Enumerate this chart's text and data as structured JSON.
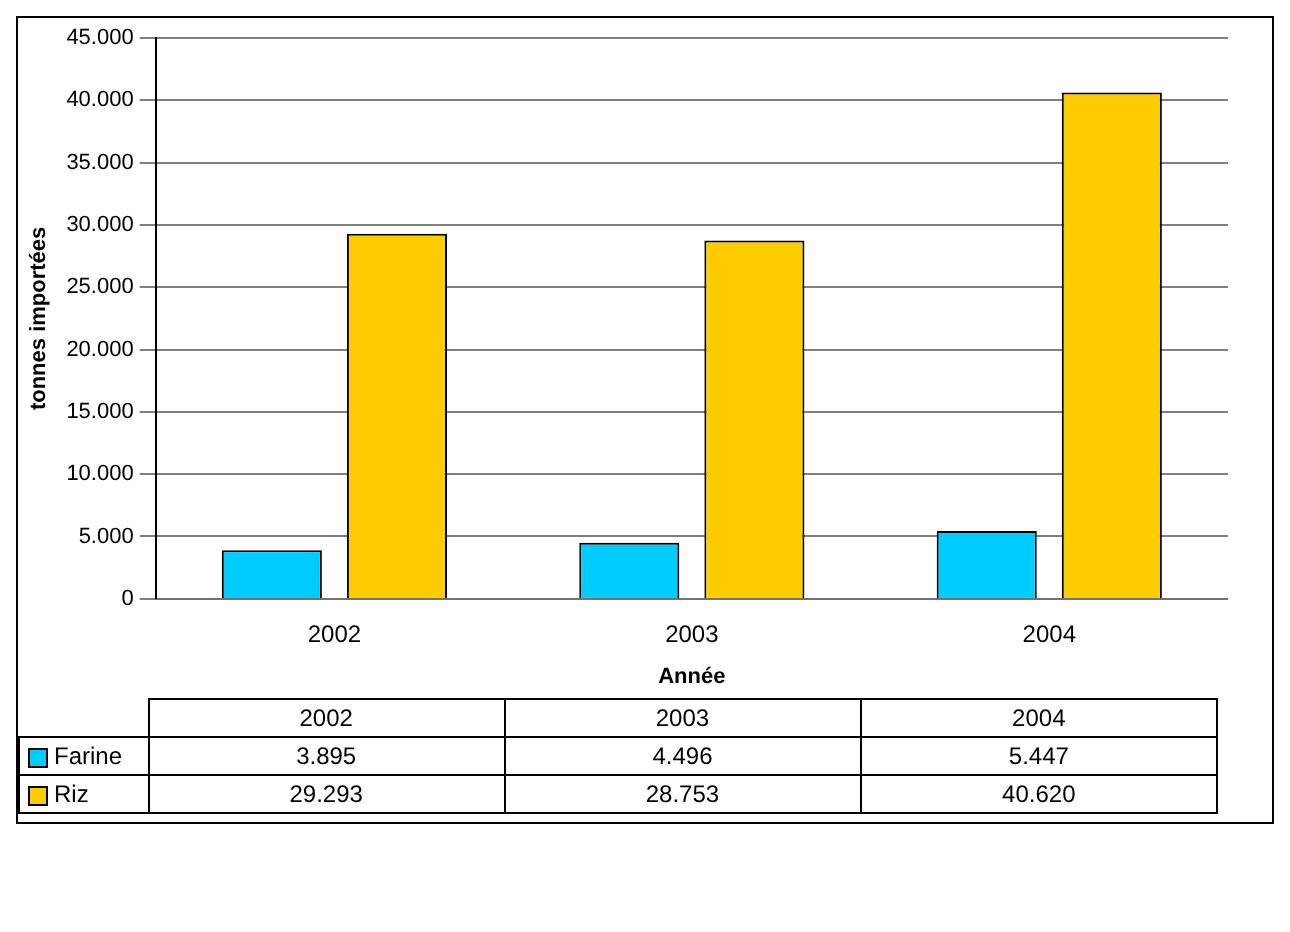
{
  "chart_data": {
    "type": "bar",
    "xlabel": "Année",
    "ylabel": "tonnes importées",
    "categories": [
      "2002",
      "2003",
      "2004"
    ],
    "series": [
      {
        "name": "Farine",
        "color": "#00ccff",
        "values": [
          3895,
          4496,
          5447
        ],
        "value_labels": [
          "3.895",
          "4.496",
          "5.447"
        ]
      },
      {
        "name": "Riz",
        "color": "#ffcc00",
        "values": [
          29293,
          28753,
          40620
        ],
        "value_labels": [
          "29.293",
          "28.753",
          "40.620"
        ]
      }
    ],
    "ylim": [
      0,
      45000
    ],
    "yticks": [
      {
        "value": 0,
        "label": "0"
      },
      {
        "value": 5000,
        "label": "5.000"
      },
      {
        "value": 10000,
        "label": "10.000"
      },
      {
        "value": 15000,
        "label": "15.000"
      },
      {
        "value": 20000,
        "label": "20.000"
      },
      {
        "value": 25000,
        "label": "25.000"
      },
      {
        "value": 30000,
        "label": "30.000"
      },
      {
        "value": 35000,
        "label": "35.000"
      },
      {
        "value": 40000,
        "label": "40.000"
      },
      {
        "value": 45000,
        "label": "45.000"
      }
    ],
    "grid": "y",
    "legend": "bottom left"
  }
}
